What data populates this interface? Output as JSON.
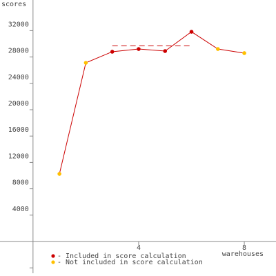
{
  "chart_data": {
    "type": "line",
    "y_label": "scores",
    "x_label": "warehouses",
    "x": [
      1,
      2,
      3,
      4,
      5,
      6,
      7,
      8
    ],
    "series": [
      {
        "color": "#cc0000",
        "values": [
          10260,
          27120,
          28800,
          29210,
          28900,
          31830,
          29210,
          28590
        ],
        "point_colors": [
          "#ffc000",
          "#ffc000",
          "#cc0000",
          "#cc0000",
          "#cc0000",
          "#cc0000",
          "#ffc000",
          "#ffc000"
        ]
      }
    ],
    "reference_line": {
      "value": 29685,
      "x_range": [
        3,
        6
      ],
      "color": "#cc0000"
    },
    "xlim": [
      -1.25,
      9.2
    ],
    "xticks": [
      4,
      8
    ],
    "ylim": [
      -5236,
      36650
    ],
    "yticks": [
      4000,
      8000,
      12000,
      16000,
      20000,
      24000,
      28000,
      32000
    ],
    "minor_yticks": [
      -4000
    ],
    "legend": [
      {
        "label": "- Included in score calculation",
        "color": "#cc0000"
      },
      {
        "label": "- Not included in score calculation",
        "color": "#ffc000"
      }
    ]
  }
}
